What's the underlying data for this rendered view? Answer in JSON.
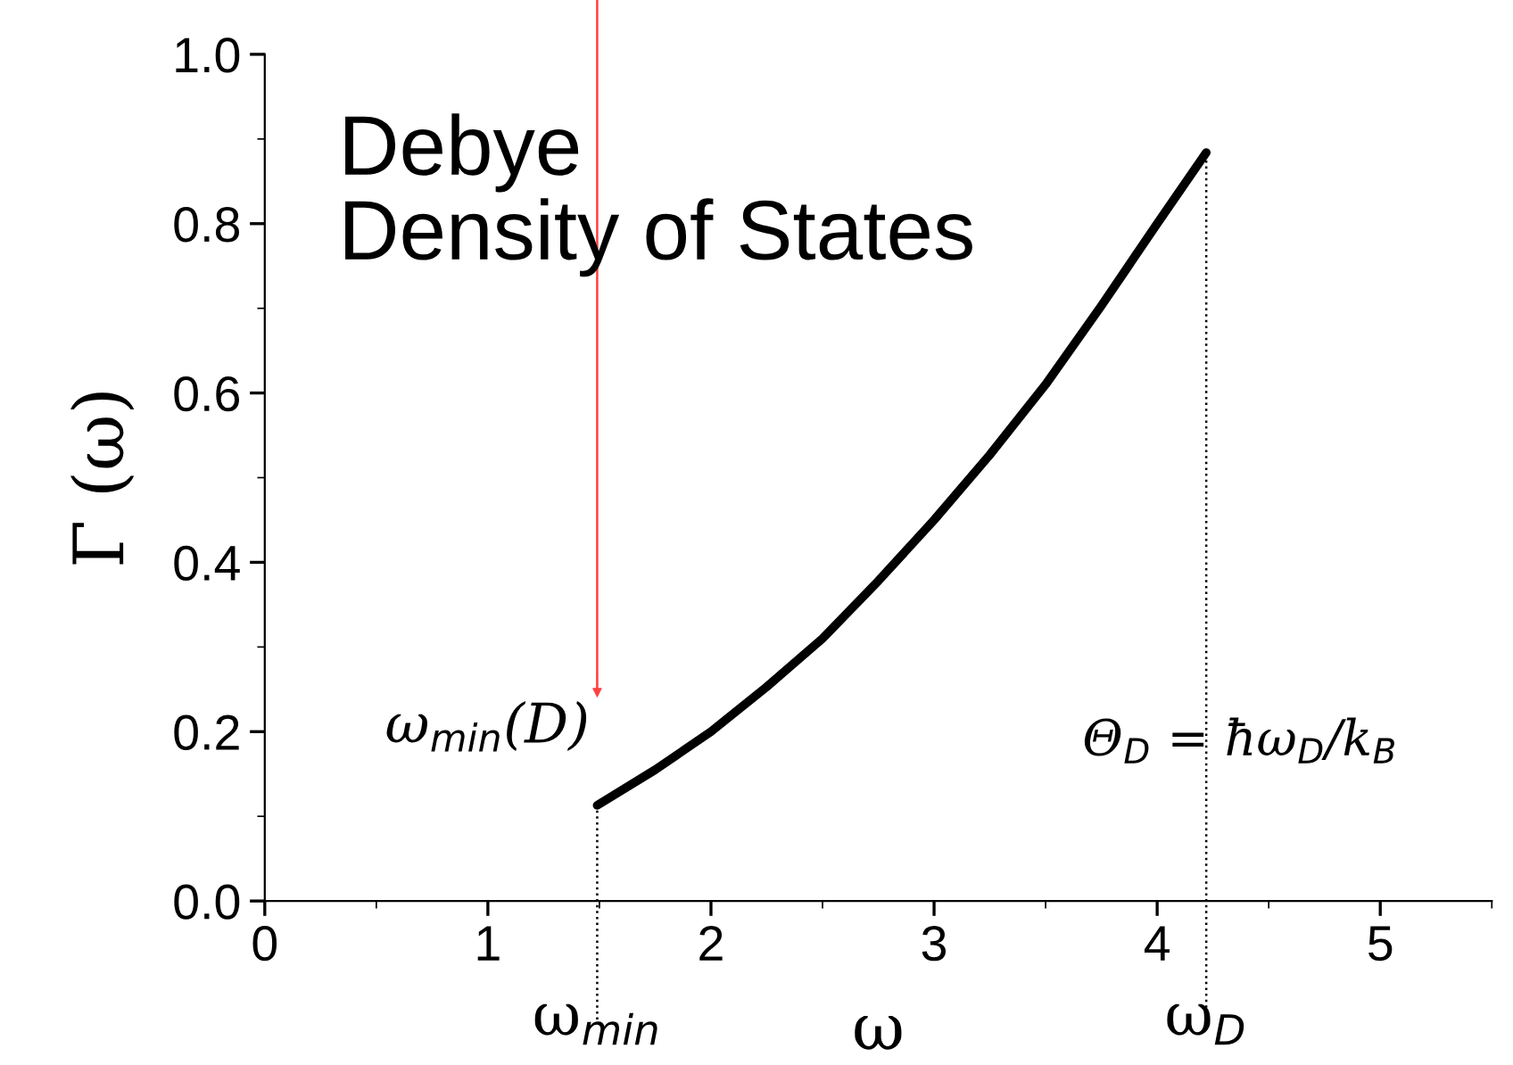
{
  "chart_data": {
    "type": "line",
    "title": "Debye\nDensity of States",
    "xlabel": "ω",
    "ylabel": "Γ (ω)",
    "x": [
      1.49,
      1.75,
      2.0,
      2.25,
      2.5,
      2.75,
      3.0,
      3.25,
      3.5,
      3.75,
      4.0,
      4.22
    ],
    "series": [
      {
        "color": "#000000",
        "values": [
          0.113,
          0.155,
          0.2,
          0.253,
          0.31,
          0.378,
          0.45,
          0.527,
          0.61,
          0.703,
          0.8,
          0.884
        ]
      }
    ],
    "xlim": [
      0,
      5.5
    ],
    "ylim": [
      0,
      1.0
    ],
    "xticks": [
      0,
      1,
      2,
      3,
      4,
      5
    ],
    "yticks": [
      {
        "value": 0,
        "label": "0.0"
      },
      0.2,
      0.4,
      0.6,
      0.8,
      {
        "value": 1,
        "label": "1.0"
      }
    ],
    "ref_lines": [
      {
        "axis": "x",
        "value": 1.49,
        "label": "ω$_{min}$",
        "color": "#000000",
        "line_style": "dotted"
      },
      {
        "axis": "x",
        "value": 4.22,
        "label": "ω$_{D}$",
        "color": "#000000",
        "line_style": "dotted"
      },
      {
        "axis": "x",
        "value": 1.49,
        "color": "#ff4040",
        "line_style": "solid"
      }
    ],
    "annotations": [
      "ω$_{min}$(D)",
      {
        "text": "Θ$_{D}$ = ħω$_{D}$/k$_{B}$",
        "x": 4.22,
        "y": 0.24
      }
    ],
    "grid": false,
    "legend": false,
    "marker": "none",
    "line_style": "solid"
  }
}
